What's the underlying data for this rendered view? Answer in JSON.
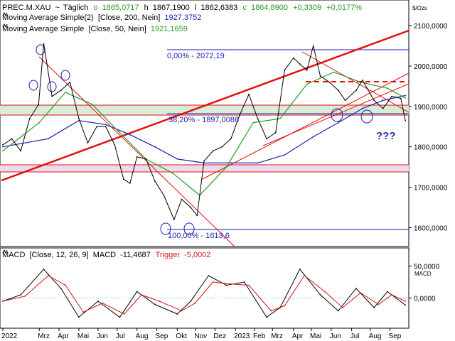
{
  "header": {
    "symbol": "PREC.M.XAU",
    "tilde": "~",
    "interval": "Täglich",
    "o_label": "o",
    "o_value": "1865,0717",
    "h_label": "h",
    "h_value": "1867,1900",
    "l_label": "l",
    "l_value": "1862,6383",
    "c_label": "c",
    "c_value": "1864,8900",
    "change": "+0,3309",
    "change_pct": "+0,0177%",
    "ma200_name": "Moving Average Simple(2)",
    "ma200_params": "[Close, 200, Nein]",
    "ma200_value": "1927,3752",
    "ma50_name": "Moving Average Simple",
    "ma50_params": "[Close, 50, Nein]",
    "ma50_value": "1921,1659"
  },
  "macd": {
    "name": "MACD",
    "params": "[Close, 12, 26, 9]",
    "value_label": "MACD",
    "value": "-11,4687",
    "trigger_label": "Trigger",
    "trigger_value": "-5,0002",
    "axis_title": "MACD",
    "ticks": [
      "50,0000",
      "0,0000"
    ]
  },
  "price_axis": {
    "unit": "$/Ozs",
    "ticks": [
      "2100,0000",
      "2000,0000",
      "1900,0000",
      "1800,0000",
      "1700,0000",
      "1600,0000"
    ]
  },
  "annotations": {
    "fib_0": "0,00% - 2072,19",
    "fib_38": "38,20% - 1897,0086",
    "fib_100": "100,00% - 1613,6",
    "question": "???"
  },
  "colors": {
    "price": "#000000",
    "ma200": "#1c1cb4",
    "ma50": "#2a9a2a",
    "trendline": "#e01010",
    "fib": "#1c1cb4",
    "macd": "#000000",
    "trigger": "#d01818",
    "support_band": "#d9ecd9",
    "pink_band": "#ecdced",
    "question": "#1f2fb0"
  },
  "chart_data": {
    "type": "line",
    "title": "",
    "x_tick_labels": [
      "2022",
      "Mrz",
      "Apr",
      "Mai",
      "Jun",
      "Jul",
      "Aug",
      "Sep",
      "Okt",
      "Nov",
      "Dez",
      "2023",
      "Feb",
      "Mrz",
      "Apr",
      "Mai",
      "Jun",
      "Jul",
      "Aug",
      "Sep"
    ],
    "ylim": [
      1555,
      2160
    ],
    "series": [
      {
        "name": "PREC.M.XAU",
        "x": [
          "2022-01-03",
          "2022-01-17",
          "2022-01-31",
          "2022-02-14",
          "2022-02-28",
          "2022-03-08",
          "2022-03-21",
          "2022-04-04",
          "2022-04-18",
          "2022-05-02",
          "2022-05-16",
          "2022-05-30",
          "2022-06-13",
          "2022-06-27",
          "2022-07-11",
          "2022-07-21",
          "2022-08-01",
          "2022-08-15",
          "2022-08-29",
          "2022-09-12",
          "2022-09-28",
          "2022-10-10",
          "2022-10-24",
          "2022-11-03",
          "2022-11-14",
          "2022-11-28",
          "2022-12-12",
          "2022-12-26",
          "2023-01-09",
          "2023-01-23",
          "2023-02-06",
          "2023-02-20",
          "2023-03-06",
          "2023-03-20",
          "2023-04-03",
          "2023-04-13",
          "2023-04-24",
          "2023-05-04",
          "2023-05-15",
          "2023-05-29",
          "2023-06-12",
          "2023-06-23",
          "2023-07-10",
          "2023-07-20",
          "2023-08-07",
          "2023-08-21",
          "2023-09-04",
          "2023-09-18",
          "2023-09-25"
        ],
        "values": [
          1805,
          1820,
          1790,
          1870,
          1905,
          2055,
          1925,
          1940,
          1960,
          1870,
          1810,
          1850,
          1850,
          1805,
          1720,
          1710,
          1775,
          1770,
          1715,
          1680,
          1620,
          1670,
          1650,
          1630,
          1765,
          1790,
          1800,
          1820,
          1880,
          1930,
          1870,
          1820,
          1835,
          1990,
          2020,
          2005,
          1990,
          2050,
          1975,
          1960,
          1940,
          1915,
          1940,
          1965,
          1915,
          1895,
          1925,
          1920,
          1865
        ]
      },
      {
        "name": "Moving Average Simple(2)",
        "x": [
          "2022-01-03",
          "2022-03-15",
          "2022-05-02",
          "2022-06-13",
          "2022-07-21",
          "2022-08-29",
          "2022-10-03",
          "2022-11-14",
          "2022-12-26",
          "2023-02-06",
          "2023-03-20",
          "2023-05-04",
          "2023-06-12",
          "2023-07-20",
          "2023-08-21",
          "2023-09-25"
        ],
        "values": [
          1800,
          1820,
          1865,
          1855,
          1830,
          1800,
          1770,
          1760,
          1760,
          1760,
          1780,
          1825,
          1860,
          1895,
          1915,
          1927
        ]
      },
      {
        "name": "Moving Average Simple",
        "x": [
          "2022-01-03",
          "2022-03-01",
          "2022-04-11",
          "2022-05-23",
          "2022-07-05",
          "2022-08-15",
          "2022-09-26",
          "2022-11-07",
          "2022-12-19",
          "2023-01-30",
          "2023-03-13",
          "2023-04-24",
          "2023-06-05",
          "2023-07-17",
          "2023-08-28",
          "2023-09-25"
        ],
        "values": [
          1790,
          1860,
          1935,
          1905,
          1835,
          1770,
          1735,
          1680,
          1750,
          1860,
          1870,
          1955,
          1985,
          1960,
          1945,
          1921
        ]
      },
      {
        "name": "MACD",
        "x": [
          "2022-01-03",
          "2022-01-31",
          "2022-03-08",
          "2022-04-04",
          "2022-05-02",
          "2022-06-01",
          "2022-07-05",
          "2022-08-01",
          "2022-08-29",
          "2022-10-03",
          "2022-10-24",
          "2022-11-21",
          "2022-12-19",
          "2023-01-16",
          "2023-02-20",
          "2023-03-13",
          "2023-04-13",
          "2023-05-15",
          "2023-06-12",
          "2023-07-10",
          "2023-08-07",
          "2023-08-28",
          "2023-09-25"
        ],
        "values": [
          -5,
          5,
          45,
          15,
          -30,
          -5,
          -30,
          10,
          -10,
          -25,
          -5,
          35,
          20,
          25,
          -30,
          -15,
          45,
          5,
          -20,
          15,
          -15,
          10,
          -11
        ]
      },
      {
        "name": "Trigger",
        "x": [
          "2022-01-03",
          "2022-02-07",
          "2022-03-15",
          "2022-04-11",
          "2022-05-09",
          "2022-06-08",
          "2022-07-12",
          "2022-08-08",
          "2022-09-05",
          "2022-10-10",
          "2022-10-31",
          "2022-11-28",
          "2022-12-26",
          "2023-01-23",
          "2023-02-27",
          "2023-03-20",
          "2023-04-20",
          "2023-05-22",
          "2023-06-19",
          "2023-07-17",
          "2023-08-14",
          "2023-09-04",
          "2023-09-25"
        ],
        "values": [
          -5,
          3,
          35,
          20,
          -22,
          -8,
          -25,
          5,
          -5,
          -20,
          -8,
          25,
          22,
          20,
          -20,
          -12,
          35,
          10,
          -15,
          8,
          -10,
          5,
          -5
        ]
      }
    ],
    "macd_ylim": [
      -45,
      75
    ]
  }
}
